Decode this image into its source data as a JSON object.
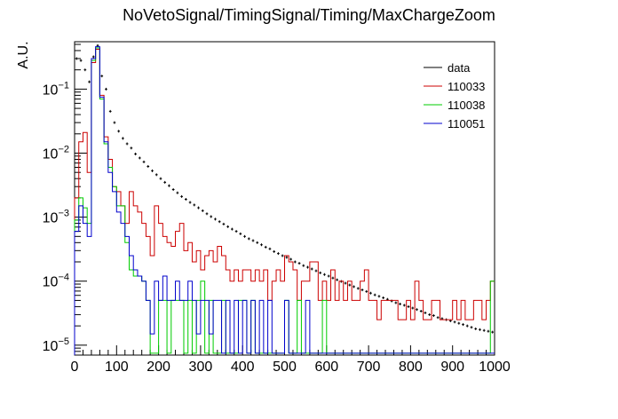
{
  "chart_data": {
    "type": "histogram",
    "title": "NoVetoSignal/TimingSignal/Timing/MaxChargeZoom",
    "xlabel": "",
    "ylabel": "A.U.",
    "xlim": [
      0,
      1000
    ],
    "ylim": [
      7e-06,
      0.55
    ],
    "yscale": "log",
    "grid": false,
    "legend_position": "top-right",
    "bin_width": 10,
    "x_ticks": [
      0,
      100,
      200,
      300,
      400,
      500,
      600,
      700,
      800,
      900,
      1000
    ],
    "x_tick_labels": [
      "0",
      "100",
      "200",
      "300",
      "400",
      "500",
      "600",
      "700",
      "800",
      "900",
      "1000"
    ],
    "y_ticks": [
      1e-05,
      0.0001,
      0.001,
      0.01,
      0.1
    ],
    "y_tick_labels": [
      {
        "base": "10",
        "exp": "−5"
      },
      {
        "base": "10",
        "exp": "−4"
      },
      {
        "base": "10",
        "exp": "−3"
      },
      {
        "base": "10",
        "exp": "−2"
      },
      {
        "base": "10",
        "exp": "−1"
      }
    ],
    "x_bins_center_start": 5,
    "series": [
      {
        "name": "data",
        "color": "#000000",
        "style": "points",
        "values": [
          0.3,
          0.28,
          0.2,
          0.13,
          0.32,
          0.48,
          0.16,
          0.1,
          0.045,
          0.03,
          0.022,
          0.017,
          0.014,
          0.012,
          0.0097,
          0.0084,
          0.0073,
          0.0062,
          0.0053,
          0.0046,
          0.004,
          0.0035,
          0.0031,
          0.0027,
          0.0024,
          0.0021,
          0.0019,
          0.0017,
          0.00155,
          0.0014,
          0.00126,
          0.00113,
          0.00102,
          0.00093,
          0.00085,
          0.00078,
          0.00071,
          0.00065,
          0.0006,
          0.00055,
          0.0005,
          0.00046,
          0.00043,
          0.0004,
          0.00037,
          0.00034,
          0.00032,
          0.00029,
          0.00027,
          0.00025,
          0.000235,
          0.00022,
          0.0002,
          0.00019,
          0.000175,
          0.000165,
          0.000155,
          0.000145,
          0.000135,
          0.000127,
          0.00012,
          0.000112,
          0.000105,
          9.9e-05,
          9.3e-05,
          8.7e-05,
          8.2e-05,
          7.7e-05,
          7.3e-05,
          6.9e-05,
          6.5e-05,
          6.1e-05,
          5.8e-05,
          5.5e-05,
          5.2e-05,
          4.9e-05,
          4.6e-05,
          4.4e-05,
          4.2e-05,
          4e-05,
          3.8e-05,
          3.6e-05,
          3.4e-05,
          3.2e-05,
          3e-05,
          2.9e-05,
          2.7e-05,
          2.6e-05,
          2.5e-05,
          2.4e-05,
          2.3e-05,
          2.2e-05,
          2.1e-05,
          2e-05,
          1.9e-05,
          1.8e-05,
          1.75e-05,
          1.7e-05,
          1.65e-05,
          1.6e-05
        ]
      },
      {
        "name": "110033",
        "color": "#cc0000",
        "style": "step",
        "values": [
          0.002,
          0.015,
          0.021,
          0.005,
          0.26,
          0.42,
          0.08,
          0.018,
          0.008,
          0.003,
          0.0025,
          0.0015,
          0.0008,
          0.0025,
          0.0015,
          0.0012,
          0.0008,
          0.0005,
          0.00025,
          0.0015,
          0.0008,
          0.0005,
          0.0004,
          0.00035,
          0.0006,
          0.0008,
          0.0003,
          0.0004,
          0.0002,
          0.0003,
          0.00015,
          0.00025,
          0.0003,
          0.0002,
          0.00035,
          0.00025,
          0.00015,
          0.0001,
          0.00015,
          0.0001,
          0.00015,
          0.00015,
          0.0001,
          0.00015,
          0.0001,
          0.00015,
          5e-05,
          0.0001,
          0.00015,
          0.0001,
          0.00025,
          0.0002,
          0.00015,
          5e-05,
          0.0001,
          0.0001,
          0.0002,
          0.0002,
          5e-05,
          0.0001,
          5e-05,
          0.00015,
          5e-05,
          0.0001,
          5e-05,
          0.0001,
          5e-05,
          5e-05,
          0.0001,
          0.00015,
          5e-05,
          5e-05,
          2.5e-05,
          5e-05,
          5e-05,
          5e-05,
          5e-05,
          2.5e-05,
          2.5e-05,
          5e-05,
          2.5e-05,
          0.0001,
          5e-05,
          2.5e-05,
          2.5e-05,
          5e-05,
          5e-05,
          2.5e-05,
          2.5e-05,
          2.5e-05,
          5e-05,
          2.5e-05,
          5e-05,
          2.5e-05,
          2.5e-05,
          5e-05,
          5e-05,
          2.5e-05,
          5e-05,
          0.0001
        ]
      },
      {
        "name": "110038",
        "color": "#00cc00",
        "style": "step",
        "values": [
          0.0009,
          0.002,
          0.0014,
          0.0008,
          0.28,
          0.44,
          0.07,
          0.014,
          0.006,
          0.003,
          0.0015,
          0.0015,
          0.0004,
          0.00015,
          0.00012,
          0.00012,
          0.0001,
          5e-05,
          7.5e-06,
          7.5e-06,
          5e-05,
          5e-05,
          7.5e-06,
          5e-05,
          5e-05,
          5e-05,
          7.5e-06,
          5e-05,
          7.5e-06,
          5e-05,
          0.0001,
          7.5e-06,
          5e-05,
          7.5e-06,
          7.5e-06,
          5e-05,
          7.5e-06,
          7.5e-06,
          7.5e-06,
          5e-05,
          5e-05,
          7.5e-06,
          5e-05,
          7.5e-06,
          7.5e-06,
          7.5e-06,
          7.5e-06,
          7.5e-06,
          7.5e-06,
          7.5e-06,
          5e-05,
          7.5e-06,
          7.5e-06,
          5e-05,
          7.5e-06,
          7.5e-06,
          7.5e-06,
          7.5e-06,
          7.5e-06,
          5e-05,
          7.5e-06,
          7.5e-06,
          7.5e-06,
          7.5e-06,
          7.5e-06,
          7.5e-06,
          7.5e-06,
          7.5e-06,
          7.5e-06,
          7.5e-06,
          7.5e-06,
          7.5e-06,
          7.5e-06,
          7.5e-06,
          7.5e-06,
          7.5e-06,
          7.5e-06,
          7.5e-06,
          7.5e-06,
          7.5e-06,
          7.5e-06,
          7.5e-06,
          7.5e-06,
          7.5e-06,
          7.5e-06,
          7.5e-06,
          7.5e-06,
          7.5e-06,
          7.5e-06,
          7.5e-06,
          7.5e-06,
          7.5e-06,
          7.5e-06,
          7.5e-06,
          7.5e-06,
          7.5e-06,
          7.5e-06,
          7.5e-06,
          7.5e-06,
          0.0001
        ]
      },
      {
        "name": "110051",
        "color": "#0000cc",
        "style": "step",
        "values": [
          0.0006,
          0.0015,
          0.0008,
          0.0005,
          0.3,
          0.46,
          0.075,
          0.015,
          0.005,
          0.0025,
          0.0012,
          0.0008,
          0.0005,
          0.00025,
          0.00015,
          0.00012,
          0.0001,
          5e-05,
          1.5e-05,
          0.0001,
          5e-05,
          0.00012,
          5e-05,
          5e-05,
          0.0001,
          5e-05,
          5e-05,
          0.0001,
          5e-05,
          1.5e-05,
          5e-05,
          5e-05,
          1.5e-05,
          5e-05,
          5e-05,
          7.5e-06,
          5e-05,
          7.5e-06,
          5e-05,
          7.5e-06,
          5e-05,
          7.5e-06,
          5e-05,
          7.5e-06,
          5e-05,
          7.5e-06,
          5e-05,
          7.5e-06,
          7.5e-06,
          7.5e-06,
          5e-05,
          7.5e-06,
          7.5e-06,
          7.5e-06,
          7.5e-06,
          5e-05,
          7.5e-06,
          7.5e-06,
          7.5e-06,
          7.5e-06,
          7.5e-06,
          7.5e-06,
          7.5e-06,
          7.5e-06,
          7.5e-06,
          7.5e-06,
          7.5e-06,
          7.5e-06,
          7.5e-06,
          7.5e-06,
          7.5e-06,
          7.5e-06,
          7.5e-06,
          7.5e-06,
          7.5e-06,
          7.5e-06,
          7.5e-06,
          7.5e-06,
          7.5e-06,
          7.5e-06,
          7.5e-06,
          7.5e-06,
          7.5e-06,
          7.5e-06,
          7.5e-06,
          7.5e-06,
          7.5e-06,
          7.5e-06,
          7.5e-06,
          7.5e-06,
          7.5e-06,
          7.5e-06,
          7.5e-06,
          7.5e-06,
          7.5e-06,
          7.5e-06,
          7.5e-06,
          7.5e-06,
          7.5e-06,
          7.5e-06
        ]
      }
    ]
  }
}
